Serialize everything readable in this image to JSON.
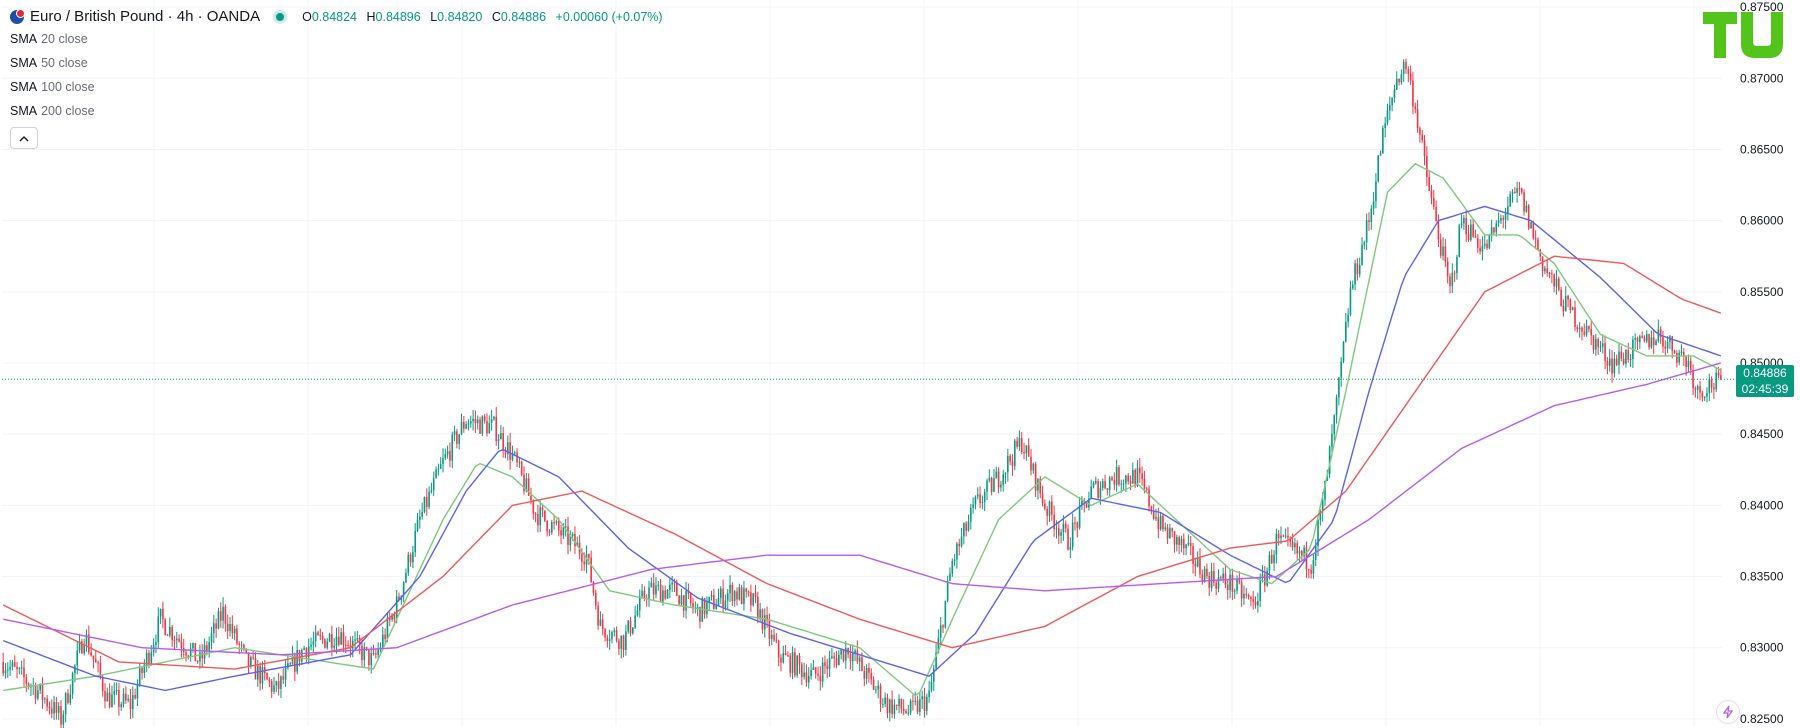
{
  "header": {
    "symbol_title": "Euro / British Pound · 4h · OANDA",
    "ohlc": {
      "o_label": "O",
      "o": "0.84824",
      "h_label": "H",
      "h": "0.84896",
      "l_label": "L",
      "l": "0.84820",
      "c_label": "C",
      "c": "0.84886",
      "change": "+0.00060 (+0.07%)"
    },
    "indicators": [
      {
        "name": "SMA",
        "params": "20 close"
      },
      {
        "name": "SMA",
        "params": "50 close"
      },
      {
        "name": "SMA",
        "params": "100 close"
      },
      {
        "name": "SMA",
        "params": "200 close"
      }
    ],
    "collapse_glyph": "^"
  },
  "price_label": {
    "price": "0.84886",
    "countdown": "02:45:39"
  },
  "icons": {
    "collapse": "chevron-up-icon",
    "symbol": "currency-flag-icon",
    "status": "market-open-dot-icon",
    "logo": "tu-logo-icon",
    "bolt": "lightning-icon"
  },
  "colors": {
    "up": "#089981",
    "down": "#f23645",
    "sma20": "#7fc97f",
    "sma50": "#5b63f0",
    "sma100": "#f0585a",
    "sma200": "#b45cf5",
    "grid": "#f0f3fa",
    "logo": "#52c41a"
  },
  "chart_data": {
    "type": "candlestick",
    "ylim": [
      0.8245,
      0.8755
    ],
    "y_ticks": [
      "0.82500",
      "0.83000",
      "0.83500",
      "0.84000",
      "0.84500",
      "0.85000",
      "0.85500",
      "0.86000",
      "0.86500",
      "0.87000",
      "0.87500"
    ],
    "last_close": 0.84886,
    "anchors": [
      [
        0,
        0.829
      ],
      [
        15,
        0.827
      ],
      [
        25,
        0.825
      ],
      [
        35,
        0.831
      ],
      [
        45,
        0.8265
      ],
      [
        55,
        0.826
      ],
      [
        68,
        0.832
      ],
      [
        85,
        0.829
      ],
      [
        95,
        0.8325
      ],
      [
        105,
        0.829
      ],
      [
        118,
        0.827
      ],
      [
        130,
        0.83
      ],
      [
        145,
        0.831
      ],
      [
        160,
        0.829
      ],
      [
        170,
        0.833
      ],
      [
        180,
        0.839
      ],
      [
        190,
        0.843
      ],
      [
        200,
        0.846
      ],
      [
        212,
        0.8455
      ],
      [
        220,
        0.8435
      ],
      [
        230,
        0.8395
      ],
      [
        245,
        0.8375
      ],
      [
        252,
        0.8365
      ],
      [
        258,
        0.8315
      ],
      [
        268,
        0.8305
      ],
      [
        278,
        0.834
      ],
      [
        290,
        0.834
      ],
      [
        300,
        0.8325
      ],
      [
        315,
        0.834
      ],
      [
        325,
        0.833
      ],
      [
        335,
        0.8295
      ],
      [
        350,
        0.828
      ],
      [
        365,
        0.83
      ],
      [
        375,
        0.8275
      ],
      [
        382,
        0.826
      ],
      [
        392,
        0.8255
      ],
      [
        400,
        0.8265
      ],
      [
        410,
        0.836
      ],
      [
        420,
        0.84
      ],
      [
        430,
        0.842
      ],
      [
        440,
        0.8445
      ],
      [
        450,
        0.84
      ],
      [
        460,
        0.8375
      ],
      [
        470,
        0.841
      ],
      [
        480,
        0.842
      ],
      [
        490,
        0.842
      ],
      [
        500,
        0.8385
      ],
      [
        510,
        0.837
      ],
      [
        520,
        0.835
      ],
      [
        530,
        0.8345
      ],
      [
        540,
        0.833
      ],
      [
        545,
        0.835
      ],
      [
        550,
        0.8375
      ],
      [
        560,
        0.8365
      ],
      [
        565,
        0.836
      ],
      [
        570,
        0.84
      ],
      [
        576,
        0.847
      ],
      [
        582,
        0.855
      ],
      [
        590,
        0.86
      ],
      [
        596,
        0.866
      ],
      [
        602,
        0.87
      ],
      [
        606,
        0.871
      ],
      [
        610,
        0.868
      ],
      [
        615,
        0.863
      ],
      [
        620,
        0.859
      ],
      [
        625,
        0.855
      ],
      [
        630,
        0.86
      ],
      [
        640,
        0.858
      ],
      [
        650,
        0.861
      ],
      [
        655,
        0.862
      ],
      [
        665,
        0.857
      ],
      [
        675,
        0.854
      ],
      [
        685,
        0.852
      ],
      [
        695,
        0.85
      ],
      [
        705,
        0.851
      ],
      [
        715,
        0.852
      ],
      [
        722,
        0.851
      ],
      [
        728,
        0.85
      ],
      [
        732,
        0.848
      ],
      [
        737,
        0.8485
      ],
      [
        742,
        0.8486
      ]
    ],
    "sma20": [
      [
        0,
        0.827
      ],
      [
        40,
        0.828
      ],
      [
        100,
        0.83
      ],
      [
        160,
        0.8285
      ],
      [
        190,
        0.839
      ],
      [
        205,
        0.843
      ],
      [
        220,
        0.842
      ],
      [
        240,
        0.839
      ],
      [
        262,
        0.834
      ],
      [
        290,
        0.833
      ],
      [
        330,
        0.832
      ],
      [
        370,
        0.83
      ],
      [
        395,
        0.8265
      ],
      [
        410,
        0.832
      ],
      [
        430,
        0.839
      ],
      [
        450,
        0.842
      ],
      [
        470,
        0.84
      ],
      [
        490,
        0.8415
      ],
      [
        510,
        0.8385
      ],
      [
        530,
        0.8355
      ],
      [
        548,
        0.8345
      ],
      [
        565,
        0.837
      ],
      [
        580,
        0.848
      ],
      [
        598,
        0.862
      ],
      [
        610,
        0.864
      ],
      [
        622,
        0.863
      ],
      [
        640,
        0.859
      ],
      [
        655,
        0.859
      ],
      [
        670,
        0.857
      ],
      [
        690,
        0.852
      ],
      [
        710,
        0.8505
      ],
      [
        730,
        0.8505
      ],
      [
        742,
        0.8495
      ]
    ],
    "sma50": [
      [
        0,
        0.8305
      ],
      [
        40,
        0.828
      ],
      [
        70,
        0.827
      ],
      [
        100,
        0.828
      ],
      [
        150,
        0.8295
      ],
      [
        180,
        0.835
      ],
      [
        200,
        0.841
      ],
      [
        215,
        0.844
      ],
      [
        240,
        0.842
      ],
      [
        270,
        0.837
      ],
      [
        300,
        0.8335
      ],
      [
        340,
        0.831
      ],
      [
        380,
        0.829
      ],
      [
        400,
        0.828
      ],
      [
        420,
        0.831
      ],
      [
        445,
        0.8375
      ],
      [
        470,
        0.8405
      ],
      [
        500,
        0.8395
      ],
      [
        530,
        0.8365
      ],
      [
        555,
        0.8345
      ],
      [
        575,
        0.839
      ],
      [
        590,
        0.848
      ],
      [
        605,
        0.856
      ],
      [
        620,
        0.86
      ],
      [
        640,
        0.861
      ],
      [
        660,
        0.86
      ],
      [
        690,
        0.856
      ],
      [
        715,
        0.852
      ],
      [
        742,
        0.8505
      ]
    ],
    "sma100": [
      [
        0,
        0.833
      ],
      [
        50,
        0.829
      ],
      [
        100,
        0.8285
      ],
      [
        150,
        0.83
      ],
      [
        190,
        0.835
      ],
      [
        220,
        0.84
      ],
      [
        250,
        0.841
      ],
      [
        290,
        0.838
      ],
      [
        330,
        0.8345
      ],
      [
        370,
        0.832
      ],
      [
        410,
        0.83
      ],
      [
        450,
        0.8315
      ],
      [
        490,
        0.835
      ],
      [
        530,
        0.837
      ],
      [
        555,
        0.8375
      ],
      [
        580,
        0.841
      ],
      [
        610,
        0.848
      ],
      [
        640,
        0.855
      ],
      [
        670,
        0.8575
      ],
      [
        700,
        0.857
      ],
      [
        725,
        0.8545
      ],
      [
        742,
        0.8535
      ]
    ],
    "sma200": [
      [
        0,
        0.832
      ],
      [
        60,
        0.83
      ],
      [
        120,
        0.8295
      ],
      [
        170,
        0.83
      ],
      [
        220,
        0.833
      ],
      [
        280,
        0.8355
      ],
      [
        330,
        0.8365
      ],
      [
        370,
        0.8365
      ],
      [
        410,
        0.8345
      ],
      [
        450,
        0.834
      ],
      [
        500,
        0.8345
      ],
      [
        550,
        0.835
      ],
      [
        590,
        0.839
      ],
      [
        630,
        0.844
      ],
      [
        670,
        0.847
      ],
      [
        710,
        0.8485
      ],
      [
        742,
        0.85
      ]
    ]
  }
}
